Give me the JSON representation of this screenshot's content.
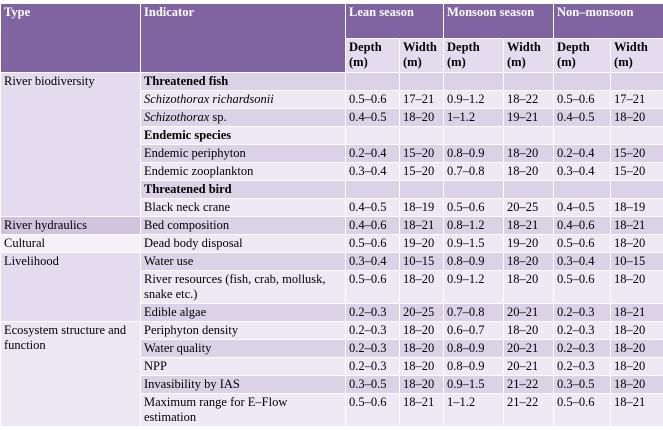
{
  "header": {
    "type": "Type",
    "indicator": "Indicator",
    "seasons": [
      "Lean season",
      "Monsoon season",
      "Non–monsoon"
    ],
    "subcolumns": [
      "Depth (m)",
      "Width (m)",
      "Depth (m)",
      "Width (m)",
      "Depth (m)",
      "Width (m)"
    ]
  },
  "groups": [
    {
      "type": "River biodiversity",
      "rows": [
        {
          "indicator": "Threatened fish",
          "heading": true
        },
        {
          "indicator_italic": "Schizothorax richardsonii",
          "values": [
            "0.5–0.6",
            "17–21",
            "0.9–1.2",
            "18–22",
            "0.5–0.6",
            "17–21"
          ]
        },
        {
          "indicator_italic": "Schizothorax",
          "indicator": " sp.",
          "values": [
            "0.4–0.5",
            "18–20",
            "1–1.2",
            "19–21",
            "0.4–0.5",
            "18–20"
          ]
        },
        {
          "indicator": "Endemic species",
          "heading": true
        },
        {
          "indicator": "Endemic periphyton",
          "values": [
            "0.2–0.4",
            "15–20",
            "0.8–0.9",
            "18–20",
            "0.2–0.4",
            "15–20"
          ]
        },
        {
          "indicator": "Endemic zooplankton",
          "values": [
            "0.3–0.4",
            "15–20",
            "0.7–0.8",
            "18–20",
            "0.3–0.4",
            "15–20"
          ]
        },
        {
          "indicator": "Threatened bird",
          "heading": true
        },
        {
          "indicator": "Black neck crane",
          "values": [
            "0.4–0.5",
            "18–19",
            "0.5–0.6",
            "20–25",
            "0.4–0.5",
            "18–19"
          ]
        }
      ]
    },
    {
      "type": "River hydraulics",
      "rows": [
        {
          "indicator": "Bed composition",
          "values": [
            "0.4–0.6",
            "18–21",
            "0.8–1.2",
            "18–21",
            "0.4–0.6",
            "18–21"
          ]
        }
      ]
    },
    {
      "type": "Cultural",
      "rows": [
        {
          "indicator": "Dead body disposal",
          "values": [
            "0.5–0.6",
            "19–20",
            "0.9–1.5",
            "19–20",
            "0.5–0.6",
            "18–20"
          ]
        }
      ]
    },
    {
      "type": "Livelihood",
      "rows": [
        {
          "indicator": "Water use",
          "values": [
            "0.3–0.4",
            "10–15",
            "0.8–0.9",
            "18–20",
            "0.3–0.4",
            "10–15"
          ]
        },
        {
          "indicator": "River resources (fish, crab, mollusk, snake etc.)",
          "values": [
            "0.5–0.6",
            "18–20",
            "0.9–1.2",
            "18–20",
            "0.5–0.6",
            "18–20"
          ]
        },
        {
          "indicator": "Edible algae",
          "values": [
            "0.2–0.3",
            "20–25",
            "0.7–0.8",
            "20–21",
            "0.2–0.3",
            "18–21"
          ]
        }
      ]
    },
    {
      "type": "Ecosystem structure and function",
      "rows": [
        {
          "indicator": "Periphyton density",
          "values": [
            "0.2–0.3",
            "18–20",
            "0.6–0.7",
            "18–20",
            "0.2–0.3",
            "18–20"
          ]
        },
        {
          "indicator": "Water quality",
          "values": [
            "0.2–0.3",
            "18–20",
            "0.8–0.9",
            "20–21",
            "0.2–0.3",
            "18–20"
          ]
        },
        {
          "indicator": "NPP",
          "values": [
            "0.2–0.3",
            "18–20",
            "0.8–0.9",
            "20–21",
            "0.2–0.3",
            "18–20"
          ]
        },
        {
          "indicator": "Invasibility by IAS",
          "values": [
            "0.3–0.5",
            "18–20",
            "0.9–1.5",
            "21–22",
            "0.3–0.5",
            "18–20"
          ]
        },
        {
          "indicator": "Maximum range for E–Flow estimation",
          "values": [
            "0.5–0.6",
            "18–21",
            "1–1.2",
            "21–22",
            "0.5–0.6",
            "18–21"
          ]
        }
      ]
    }
  ]
}
